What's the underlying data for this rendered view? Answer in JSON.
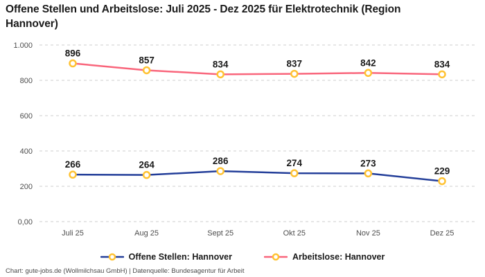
{
  "header": {
    "title": "Offene Stellen und Arbeitslose: Juli 2025 - Dez 2025 für Elektrotechnik (Region Hannover)"
  },
  "chart_data": {
    "type": "line",
    "title": "Offene Stellen und Arbeitslose: Juli 2025 - Dez 2025 für Elektrotechnik (Region Hannover)",
    "categories": [
      "Juli 25",
      "Aug 25",
      "Sept 25",
      "Okt 25",
      "Nov 25",
      "Dez 25"
    ],
    "series": [
      {
        "name": "Arbeitslose: Hannover",
        "values": [
          896,
          857,
          834,
          837,
          842,
          834
        ],
        "color": "#f9657b"
      },
      {
        "name": "Offene Stellen: Hannover",
        "values": [
          266,
          264,
          286,
          274,
          273,
          229
        ],
        "color": "#233e99"
      }
    ],
    "marker": {
      "fill": "#ffffff",
      "stroke": "#ffc232"
    },
    "ylim": [
      0,
      1000
    ],
    "yticks": [
      {
        "value": 1000,
        "label": "1.000"
      },
      {
        "value": 800,
        "label": "800"
      },
      {
        "value": 600,
        "label": "600"
      },
      {
        "value": 400,
        "label": "400"
      },
      {
        "value": 200,
        "label": "200"
      },
      {
        "value": 0,
        "label": "0,00"
      }
    ],
    "grid": "horizontal-dashed",
    "legend_position": "bottom",
    "colors": {
      "grid_line": "#cccccc",
      "tick_label": "#4d4d4d",
      "data_label": "#1a1a1a"
    }
  },
  "legend": {
    "items": [
      {
        "label": "Offene Stellen: Hannover",
        "color": "#233e99"
      },
      {
        "label": "Arbeitslose: Hannover",
        "color": "#f9657b"
      }
    ]
  },
  "footer": {
    "text": "Chart: gute-jobs.de (Wollmilchsau GmbH) | Datenquelle: Bundesagentur für Arbeit"
  }
}
